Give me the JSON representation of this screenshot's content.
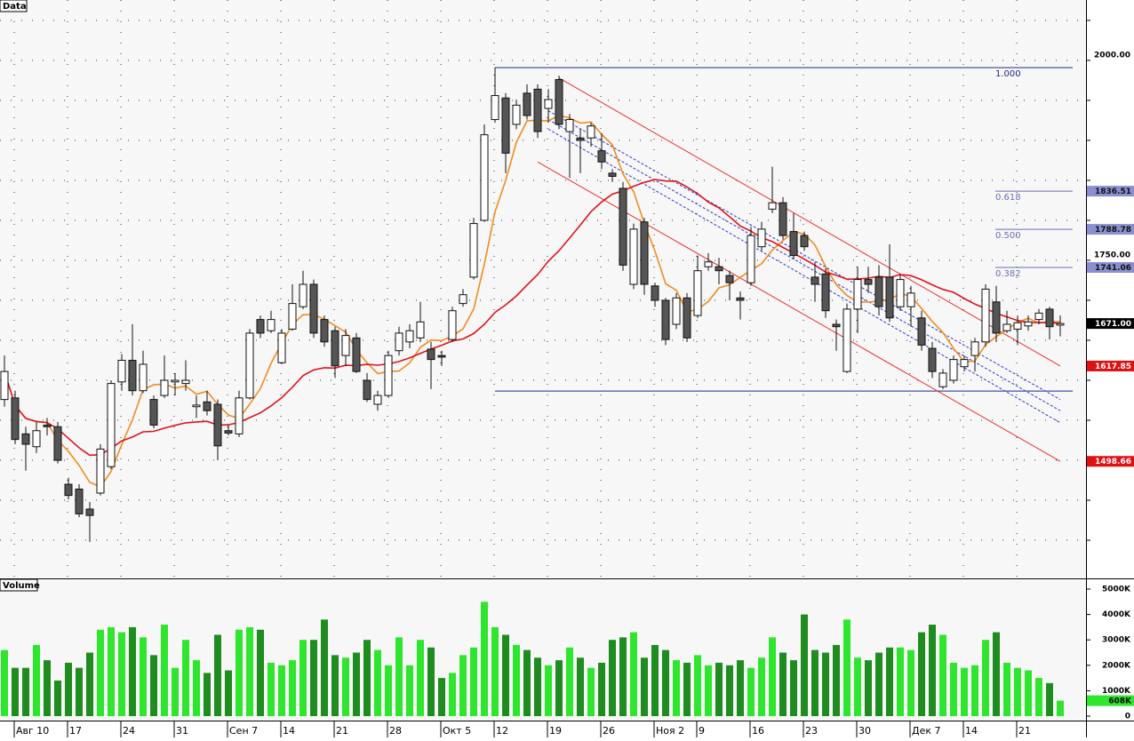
{
  "chart_data": [
    {
      "type": "candlestick",
      "title": "Data",
      "categories": [
        null,
        "Авг 10",
        null,
        null,
        null,
        null,
        "17",
        null,
        null,
        null,
        null,
        "24",
        null,
        null,
        null,
        null,
        "31",
        null,
        null,
        null,
        null,
        "Сен 7",
        null,
        null,
        null,
        null,
        "14",
        null,
        null,
        null,
        null,
        "21",
        null,
        null,
        null,
        null,
        "28",
        null,
        null,
        null,
        null,
        "Окт 5",
        null,
        null,
        null,
        null,
        "12",
        null,
        null,
        null,
        null,
        "19",
        null,
        null,
        null,
        null,
        "26",
        null,
        null,
        null,
        null,
        "Ноя 2",
        null,
        null,
        null,
        "9",
        null,
        null,
        null,
        null,
        "16",
        null,
        null,
        null,
        null,
        "23",
        null,
        null,
        null,
        null,
        "30",
        null,
        null,
        null,
        null,
        "Дек 7",
        null,
        null,
        null,
        null,
        "14",
        null,
        null,
        null,
        null,
        "21",
        null,
        null,
        null,
        null
      ],
      "open": [
        1576,
        1578,
        1533,
        1517,
        1544,
        1542,
        1470,
        1464,
        1439,
        1459,
        1492,
        1598,
        1625,
        1587,
        1576,
        1581,
        1598,
        1596,
        1567,
        1573,
        1570,
        1537,
        1533,
        1578,
        1676,
        1662,
        1622,
        1664,
        1692,
        1720,
        1676,
        1662,
        1631,
        1653,
        1600,
        1570,
        1581,
        1637,
        1648,
        1653,
        1639,
        1631,
        1651,
        1696,
        1729,
        1800,
        1926,
        1953,
        1920,
        1959,
        1964,
        1940,
        1976,
        1911,
        1903,
        1903,
        1887,
        1859,
        1840,
        1720,
        1798,
        1718,
        1700,
        1670,
        1703,
        1681,
        1742,
        1742,
        1731,
        1703,
        1722,
        1767,
        1814,
        1822,
        1786,
        1781,
        1729,
        1733,
        1670,
        1611,
        1689,
        1726,
        1729,
        1729,
        1692,
        1692,
        1678,
        1640,
        1592,
        1600,
        1617,
        1631,
        1648,
        1698,
        1662,
        1664,
        1668,
        1676,
        1689,
        1669
      ],
      "high": [
        1631,
        1587,
        1542,
        1548,
        1553,
        1548,
        1478,
        1470,
        1448,
        1520,
        1600,
        1633,
        1670,
        1637,
        1581,
        1631,
        1609,
        1625,
        1581,
        1587,
        1576,
        1544,
        1587,
        1664,
        1681,
        1687,
        1664,
        1720,
        1737,
        1726,
        1681,
        1667,
        1664,
        1659,
        1609,
        1587,
        1637,
        1667,
        1670,
        1698,
        1648,
        1637,
        1692,
        1714,
        1803,
        1920,
        1991,
        1959,
        1951,
        1970,
        1970,
        1964,
        1981,
        1933,
        1914,
        1922,
        1909,
        1864,
        1848,
        1796,
        1803,
        1722,
        1703,
        1709,
        1709,
        1756,
        1759,
        1753,
        1737,
        1711,
        1792,
        1798,
        1867,
        1829,
        1809,
        1786,
        1748,
        1740,
        1676,
        1696,
        1742,
        1742,
        1744,
        1770,
        1733,
        1718,
        1687,
        1648,
        1614,
        1631,
        1631,
        1653,
        1720,
        1718,
        1687,
        1681,
        1681,
        1689,
        1692,
        1681
      ],
      "low": [
        1567,
        1520,
        1487,
        1509,
        1531,
        1496,
        1451,
        1429,
        1398,
        1456,
        1489,
        1587,
        1581,
        1584,
        1540,
        1578,
        1581,
        1587,
        1553,
        1556,
        1500,
        1531,
        1529,
        1576,
        1653,
        1659,
        1620,
        1662,
        1689,
        1653,
        1642,
        1603,
        1618,
        1609,
        1573,
        1562,
        1578,
        1631,
        1640,
        1648,
        1589,
        1618,
        1648,
        1692,
        1726,
        1798,
        1922,
        1859,
        1914,
        1926,
        1903,
        1922,
        1914,
        1853,
        1859,
        1892,
        1864,
        1848,
        1737,
        1714,
        1707,
        1692,
        1644,
        1664,
        1648,
        1678,
        1737,
        1720,
        1700,
        1676,
        1718,
        1762,
        1809,
        1776,
        1751,
        1762,
        1698,
        1678,
        1637,
        1609,
        1659,
        1709,
        1681,
        1673,
        1687,
        1667,
        1637,
        1603,
        1589,
        1596,
        1611,
        1611,
        1642,
        1648,
        1659,
        1644,
        1662,
        1670,
        1651,
        1655
      ],
      "close": [
        1611,
        1526,
        1520,
        1537,
        1542,
        1500,
        1456,
        1433,
        1431,
        1514,
        1596,
        1625,
        1587,
        1620,
        1544,
        1600,
        1600,
        1600,
        1569,
        1562,
        1518,
        1534,
        1578,
        1659,
        1659,
        1676,
        1659,
        1696,
        1720,
        1659,
        1648,
        1618,
        1656,
        1611,
        1576,
        1581,
        1631,
        1659,
        1662,
        1673,
        1626,
        1629,
        1687,
        1707,
        1796,
        1907,
        1956,
        1884,
        1944,
        1931,
        1911,
        1951,
        1920,
        1926,
        1900,
        1918,
        1873,
        1855,
        1744,
        1789,
        1720,
        1700,
        1651,
        1703,
        1653,
        1737,
        1748,
        1737,
        1722,
        1700,
        1781,
        1789,
        1822,
        1781,
        1756,
        1767,
        1720,
        1687,
        1667,
        1689,
        1726,
        1720,
        1692,
        1678,
        1726,
        1709,
        1644,
        1611,
        1609,
        1626,
        1626,
        1648,
        1714,
        1659,
        1670,
        1672,
        1673,
        1684,
        1667,
        1671
      ],
      "up_color": "#ffffff",
      "down_color": "#555555",
      "ylim": [
        1353.4,
        2075.5
      ],
      "yticks": [
        {
          "value": 1400,
          "label": null
        },
        {
          "value": 1450,
          "label": null
        },
        {
          "value": 1500,
          "label": null
        },
        {
          "value": 1550,
          "label": null
        },
        {
          "value": 1600,
          "label": null
        },
        {
          "value": 1650,
          "label": null
        },
        {
          "value": 1700,
          "label": null
        },
        {
          "value": 1750,
          "label": "1750.00"
        },
        {
          "value": 1800,
          "label": null
        },
        {
          "value": 1850,
          "label": null
        },
        {
          "value": 1900,
          "label": null
        },
        {
          "value": 1950,
          "label": null
        },
        {
          "value": 2000,
          "label": "2000.00"
        },
        {
          "value": 2050,
          "label": null
        }
      ],
      "grid": true,
      "moving_averages": [
        {
          "period": 5,
          "color": "#f08c1e"
        },
        {
          "period": 20,
          "color": "#e0141e"
        }
      ],
      "channels": [
        {
          "from": [
            52,
            1978
          ],
          "to": [
            99,
            1617.85
          ],
          "color": "#e83030",
          "dashed": false
        },
        {
          "from": [
            50,
            1873
          ],
          "to": [
            99,
            1498.66
          ],
          "color": "#e83030",
          "dashed": false
        },
        {
          "from": [
            51,
            1937
          ],
          "to": [
            99,
            1576
          ],
          "color": "#2a3cc8",
          "dashed": true
        },
        {
          "from": [
            51,
            1926
          ],
          "to": [
            99,
            1562
          ],
          "color": "#2a3cc8",
          "dashed": true
        },
        {
          "from": [
            51,
            1914
          ],
          "to": [
            99,
            1547
          ],
          "color": "#2a3cc8",
          "dashed": true
        }
      ],
      "fibonacci": {
        "from": 46,
        "high": 1991,
        "low": 1586.56,
        "color": "#1c2a8c",
        "levels": [
          {
            "value": 1,
            "label": "1.000"
          },
          0.618,
          {
            "value": 0.5,
            "label": "0.500"
          },
          0.382
        ]
      },
      "price_labels": [
        {
          "value": 1836.51,
          "color": "#8a8fd0",
          "text_color": "#111"
        },
        {
          "value": 1788.78,
          "color": "#8a8fd0",
          "text_color": "#111"
        },
        {
          "value": 1741.06,
          "color": "#8a8fd0",
          "text_color": "#111"
        },
        {
          "value": 1671,
          "label": "1671.00",
          "color": "#000000",
          "text_color": "#fff"
        },
        {
          "value": 1617.85,
          "color": "#e01010",
          "text_color": "#fff"
        },
        {
          "value": 1498.66,
          "color": "#e01010",
          "text_color": "#fff"
        }
      ]
    },
    {
      "type": "bar",
      "title": "Volume",
      "values": [
        2600,
        1900,
        1900,
        2800,
        2200,
        1400,
        2100,
        1900,
        2500,
        3400,
        3500,
        3300,
        3500,
        3100,
        2400,
        3600,
        1900,
        3000,
        2200,
        1700,
        3200,
        1800,
        3400,
        3500,
        3400,
        2100,
        2000,
        2200,
        3000,
        3000,
        3800,
        2400,
        2300,
        2500,
        3000,
        2600,
        2000,
        3100,
        2000,
        3000,
        2700,
        1500,
        1700,
        2400,
        2700,
        4500,
        3500,
        3200,
        2800,
        2600,
        2300,
        2000,
        2200,
        2700,
        2300,
        1900,
        2100,
        3000,
        3100,
        3300,
        2300,
        2800,
        2600,
        2200,
        2100,
        2400,
        2000,
        2100,
        2000,
        2200,
        1900,
        2300,
        3100,
        2500,
        2200,
        4000,
        2600,
        2500,
        2800,
        3800,
        2300,
        2200,
        2500,
        2700,
        2700,
        2600,
        3300,
        3600,
        3200,
        2100,
        1900,
        2000,
        3000,
        3300,
        2100,
        1900,
        1800,
        1500,
        1300,
        608
      ],
      "up_color": "#2ee62e",
      "down_color": "#1e8c1e",
      "ylim": [
        -140,
        5210
      ],
      "yticks": [
        0,
        {
          "value": 1000,
          "label": "1000K"
        },
        {
          "value": 2000,
          "label": "2000K"
        },
        {
          "value": 3000,
          "label": "3000K"
        },
        {
          "value": 4000,
          "label": "4000K"
        },
        {
          "value": 5000,
          "label": "5000K"
        }
      ],
      "last_label": "608K"
    }
  ]
}
